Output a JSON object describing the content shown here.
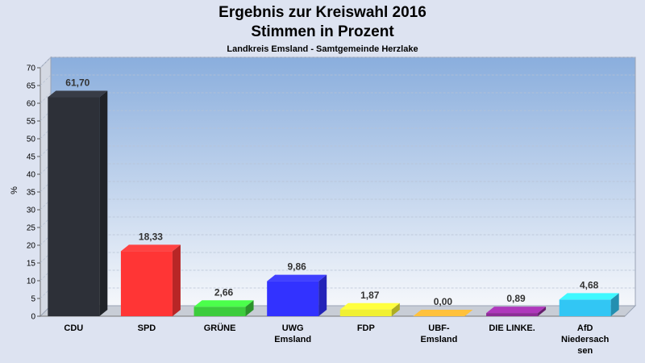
{
  "title": "Ergebnis zur Kreiswahl 2016",
  "subtitle": "Stimmen in Prozent",
  "subtitle2": "Landkreis Emsland - Samtgemeinde Herzlake",
  "chart_data": {
    "type": "bar",
    "title": "Ergebnis zur Kreiswahl 2016",
    "subtitle": "Stimmen in Prozent",
    "xlabel": "",
    "ylabel": "%",
    "ylim": [
      0,
      70
    ],
    "yticks": [
      0,
      5,
      10,
      15,
      20,
      25,
      30,
      35,
      40,
      45,
      50,
      55,
      60,
      65,
      70
    ],
    "grid": true,
    "categories": [
      [
        "CDU"
      ],
      [
        "SPD"
      ],
      [
        "GRÜNE"
      ],
      [
        "UWG",
        "Emsland"
      ],
      [
        "FDP"
      ],
      [
        "UBF-",
        "Emsland"
      ],
      [
        "DIE LINKE."
      ],
      [
        "AfD",
        "Niedersach",
        "sen"
      ]
    ],
    "values": [
      61.7,
      18.33,
      2.66,
      9.86,
      1.87,
      0.0,
      0.89,
      4.68
    ],
    "value_labels": [
      "61,70",
      "18,33",
      "2,66",
      "9,86",
      "1,87",
      "0,00",
      "0,89",
      "4,68"
    ],
    "colors": [
      "#2d3038",
      "#ff3535",
      "#3ccc3c",
      "#3232ff",
      "#f0f032",
      "#ff9a30",
      "#8c2d96",
      "#32c6f4"
    ]
  }
}
